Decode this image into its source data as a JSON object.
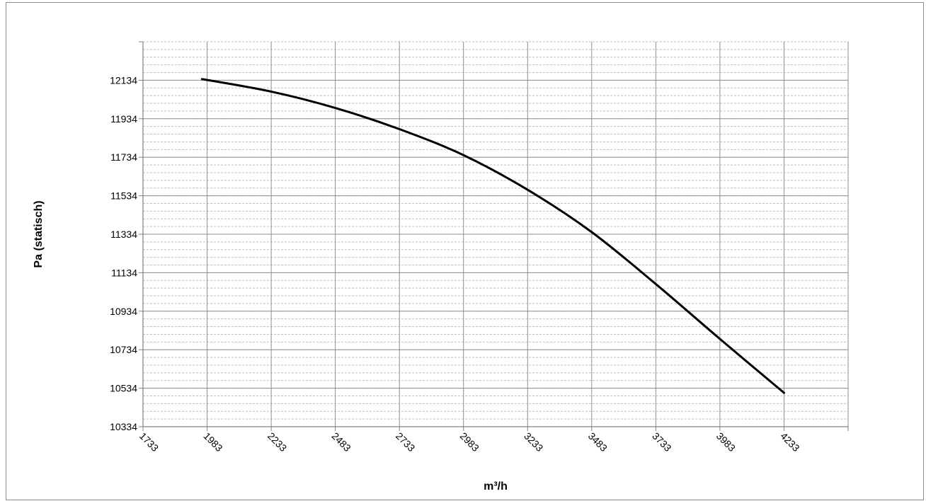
{
  "chart_data": {
    "type": "line",
    "title": "",
    "xlabel": "m³/h",
    "ylabel": "Pa (statisch)",
    "xlim": [
      1733,
      4483
    ],
    "ylim": [
      10334,
      12334
    ],
    "x_ticks": [
      1733,
      1983,
      2233,
      2483,
      2733,
      2983,
      3233,
      3483,
      3733,
      3983,
      4233
    ],
    "y_ticks": [
      10334,
      10534,
      10734,
      10934,
      11134,
      11334,
      11534,
      11734,
      11934,
      12134
    ],
    "x_tick_labels": [
      "1733",
      "1983",
      "2233",
      "2483",
      "2733",
      "2983",
      "3233",
      "3483",
      "3733",
      "3983",
      "4233"
    ],
    "y_tick_labels": [
      "10334",
      "10534",
      "10734",
      "10934",
      "11134",
      "11334",
      "11534",
      "11734",
      "11934",
      "12134"
    ],
    "y_minor_step": 40,
    "grid": true,
    "legend": "none",
    "series": [
      {
        "color": "#000000",
        "x": [
          1963,
          2233,
          2483,
          2733,
          2983,
          3233,
          3483,
          3733,
          3983,
          4233
        ],
        "y": [
          12140,
          12075,
          11990,
          11880,
          11745,
          11565,
          11345,
          11075,
          10790,
          10510
        ]
      }
    ]
  }
}
